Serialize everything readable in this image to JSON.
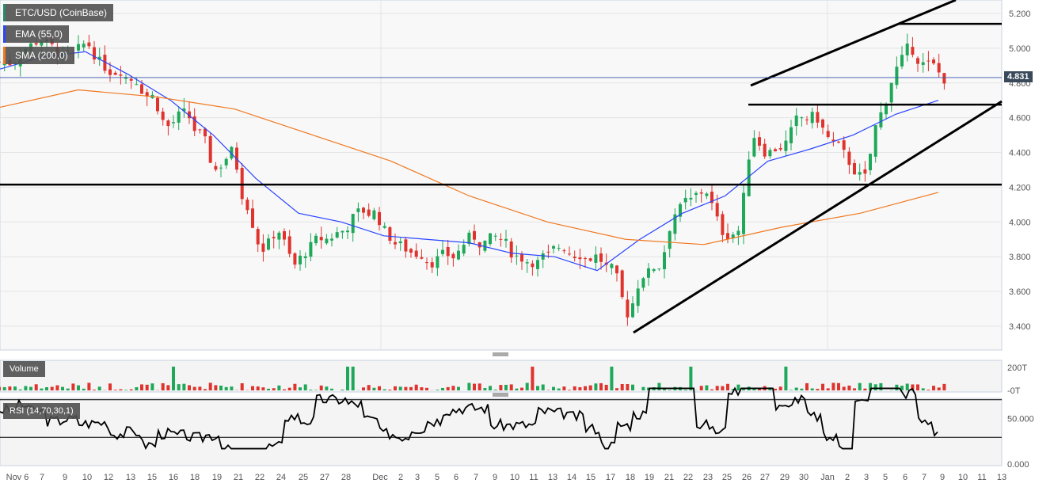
{
  "legend": {
    "symbol": "ETC/USD (CoinBase)",
    "ema": "EMA (55,0)",
    "sma": "SMA (200,0)",
    "volume": "Volume",
    "rsi": "RSI (14,70,30,1)"
  },
  "colors": {
    "up": "#1fa85a",
    "down": "#e0332d",
    "ema": "#2a44ff",
    "sma": "#f07820",
    "last_price_bg": "#3a4a5a"
  },
  "last_price": "4.831",
  "chart_data": {
    "type": "candlestick",
    "title": "ETC/USD (CoinBase)",
    "ylim": [
      3.3,
      5.28
    ],
    "y_ticks": [
      "5.200",
      "5.000",
      "4.800",
      "4.600",
      "4.400",
      "4.200",
      "4.000",
      "3.800",
      "3.600",
      "3.400"
    ],
    "x_ticks": [
      "Nov 6",
      "7",
      "9",
      "10",
      "12",
      "13",
      "15",
      "16",
      "18",
      "19",
      "21",
      "22",
      "24",
      "25",
      "27",
      "28",
      "Dec",
      "2",
      "3",
      "5",
      "6",
      "7",
      "9",
      "10",
      "11",
      "13",
      "14",
      "15",
      "17",
      "18",
      "19",
      "21",
      "22",
      "23",
      "25",
      "26",
      "27",
      "29",
      "30",
      "Jan",
      "2",
      "3",
      "5",
      "6",
      "7",
      "9",
      "10",
      "11",
      "13"
    ],
    "closes": [
      4.92,
      5.0,
      5.05,
      4.98,
      4.95,
      5.02,
      4.9,
      4.88,
      4.82,
      4.72,
      4.55,
      4.62,
      4.5,
      4.3,
      4.4,
      4.1,
      3.85,
      3.95,
      3.75,
      3.85,
      3.9,
      3.95,
      4.05,
      4.05,
      3.92,
      3.85,
      3.82,
      3.78,
      3.8,
      3.9,
      3.88,
      3.9,
      3.8,
      3.78,
      3.8,
      3.86,
      3.82,
      3.8,
      3.72,
      3.48,
      3.7,
      3.75,
      4.05,
      4.12,
      4.18,
      3.95,
      3.95,
      4.5,
      4.4,
      4.45,
      4.6,
      4.6,
      4.45,
      4.35,
      4.25,
      4.62,
      4.88,
      5.0,
      4.9,
      4.83
    ],
    "ema_55": [
      4.88,
      4.95,
      4.98,
      4.85,
      4.7,
      4.5,
      4.25,
      4.05,
      4.0,
      3.92,
      3.9,
      3.88,
      3.82,
      3.8,
      3.72,
      3.9,
      4.05,
      4.15,
      4.35,
      4.42,
      4.5,
      4.62,
      4.7
    ],
    "sma_200": [
      4.66,
      4.76,
      4.72,
      4.65,
      4.5,
      4.35,
      4.15,
      4.0,
      3.9,
      3.87,
      3.97,
      4.05,
      4.17
    ],
    "horizontal_levels": [
      4.215,
      4.675,
      5.14
    ],
    "volume_ticks": [
      "200T",
      "-0T"
    ],
    "rsi_ticks": [
      "50.000",
      "0.000"
    ],
    "rsi_levels": [
      70,
      30
    ]
  }
}
